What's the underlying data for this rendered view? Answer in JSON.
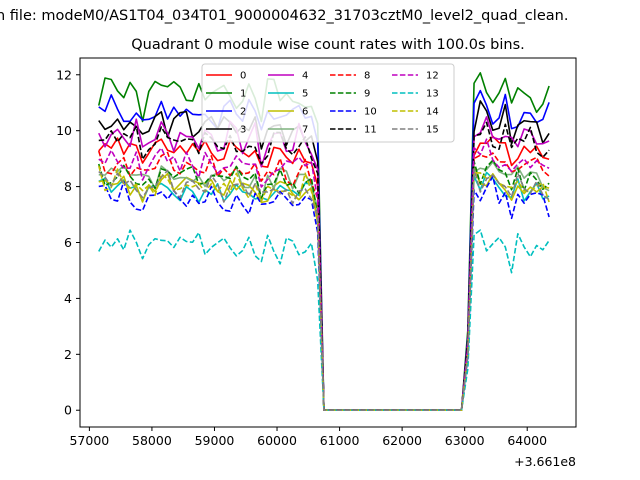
{
  "figure": {
    "suptitle": "n file: modeM0/AS1T04_034T01_9000004632_31703cztM0_level2_quad_clean.",
    "title": "Quadrant 0 module wise count rates with 100.0s bins.",
    "offset_label": "+3.661e8"
  },
  "chart_data": {
    "type": "line",
    "title": "Quadrant 0 module wise count rates with 100.0s bins.",
    "xlabel": "",
    "ylabel": "",
    "x_offset": 366100000,
    "xlim": [
      56850,
      64780
    ],
    "ylim": [
      -0.6,
      12.6
    ],
    "xticks": [
      57000,
      58000,
      59000,
      60000,
      61000,
      62000,
      63000,
      64000
    ],
    "xtick_labels": [
      "57000",
      "58000",
      "59000",
      "60000",
      "61000",
      "62000",
      "63000",
      "64000"
    ],
    "yticks": [
      0,
      2,
      4,
      6,
      8,
      10,
      12
    ],
    "ytick_labels": [
      "0",
      "2",
      "4",
      "6",
      "8",
      "10",
      "12"
    ],
    "segments": [
      {
        "start": 57150,
        "step": 100,
        "count": 36
      },
      {
        "start": 60750,
        "step": 100,
        "count": 22
      },
      {
        "start": 62950,
        "step": 100,
        "count": 15
      }
    ],
    "legend_position": "upper-center",
    "series": [
      {
        "name": "0",
        "color": "#ff0000",
        "dash": "solid",
        "base": 9.3,
        "amp": 0.35
      },
      {
        "name": "1",
        "color": "#008000",
        "dash": "solid",
        "base": 11.4,
        "amp": 0.45
      },
      {
        "name": "2",
        "color": "#0000ff",
        "dash": "solid",
        "base": 10.6,
        "amp": 0.45
      },
      {
        "name": "3",
        "color": "#000000",
        "dash": "solid",
        "base": 10.2,
        "amp": 0.4
      },
      {
        "name": "4",
        "color": "#bf00bf",
        "dash": "solid",
        "base": 9.8,
        "amp": 0.4
      },
      {
        "name": "5",
        "color": "#00bfbf",
        "dash": "solid",
        "base": 7.9,
        "amp": 0.35
      },
      {
        "name": "6",
        "color": "#bfbf00",
        "dash": "solid",
        "base": 8.0,
        "amp": 0.35
      },
      {
        "name": "7",
        "color": "#7fb27f",
        "dash": "solid",
        "base": 8.4,
        "amp": 0.35
      },
      {
        "name": "8",
        "color": "#ff0000",
        "dash": "dashed",
        "base": 8.7,
        "amp": 0.35
      },
      {
        "name": "9",
        "color": "#008000",
        "dash": "dashed",
        "base": 8.3,
        "amp": 0.35
      },
      {
        "name": "10",
        "color": "#0000ff",
        "dash": "dashed",
        "base": 7.6,
        "amp": 0.35
      },
      {
        "name": "11",
        "color": "#000000",
        "dash": "dashed",
        "base": 9.6,
        "amp": 0.35
      },
      {
        "name": "12",
        "color": "#bf00bf",
        "dash": "dashed",
        "base": 8.9,
        "amp": 0.35
      },
      {
        "name": "13",
        "color": "#00bfbf",
        "dash": "dashed",
        "base": 5.9,
        "amp": 0.35
      },
      {
        "name": "14",
        "color": "#bfbf00",
        "dash": "dashed",
        "base": 8.1,
        "amp": 0.35
      },
      {
        "name": "15",
        "color": "#808080",
        "dash": "dashed",
        "base": 8.0,
        "amp": 0.35
      }
    ]
  }
}
